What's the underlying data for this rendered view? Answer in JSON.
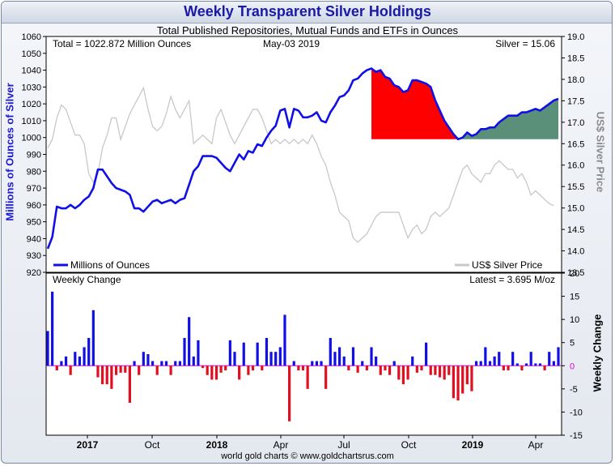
{
  "title": "Weekly Transparent Silver Holdings",
  "subtitle": "Total Published Repositories, Mutual Funds and ETFs in Ounces",
  "footer": "world gold charts © www.goldchartsrus.com",
  "upper": {
    "total_label": "Total = 1022.872 Million Ounces",
    "date_label": "May-03  2019",
    "silver_label": "Silver = 15.06",
    "ylabel_left": "Millions of Ounces of Silver",
    "ylabel_right": "US$ Silver Price",
    "legend_holdings": "Millions of Ounces",
    "legend_price": "US$ Silver Price",
    "left_ticks": [
      920,
      930,
      940,
      950,
      960,
      970,
      980,
      990,
      1000,
      1010,
      1020,
      1030,
      1040,
      1050,
      1060
    ],
    "right_ticks": [
      "13.5",
      "14.0",
      "14.5",
      "15.0",
      "15.5",
      "16.0",
      "16.5",
      "17.0",
      "17.5",
      "18.0",
      "18.5",
      "19.0"
    ]
  },
  "lower": {
    "label": "Weekly Change",
    "latest_label": "Latest = 3.695 M/oz",
    "ylabel": "Weekly Change",
    "ticks": [
      20,
      15,
      10,
      5,
      0,
      -5,
      -10,
      -15
    ]
  },
  "x_labels": [
    {
      "text": "2017",
      "bold": true
    },
    {
      "text": "Oct",
      "bold": false
    },
    {
      "text": "2018",
      "bold": true
    },
    {
      "text": "Apr",
      "bold": false
    },
    {
      "text": "Jul",
      "bold": false
    },
    {
      "text": "Oct",
      "bold": false
    },
    {
      "text": "2019",
      "bold": true
    },
    {
      "text": "Apr",
      "bold": false
    }
  ],
  "colors": {
    "holdings": "#1010e6",
    "price": "#c8c8c8",
    "pos": "#1010e6",
    "neg": "#e01020",
    "fall_fill": "#ff0000",
    "rise_fill": "#5a8f7a",
    "zero": "#e000e0"
  },
  "chart_data": [
    {
      "type": "line",
      "title": "Weekly Transparent Silver Holdings",
      "ylabel": "Millions of Ounces of Silver",
      "y2label": "US$ Silver Price",
      "ylim": [
        920,
        1060
      ],
      "y2lim": [
        13.5,
        19.0
      ],
      "x_range_weeks": 122,
      "series": [
        {
          "name": "Millions of Ounces",
          "axis": "left",
          "values": [
            934,
            941,
            959,
            958,
            958,
            960,
            958,
            960,
            963,
            965,
            970,
            981,
            981,
            977,
            973,
            970,
            969,
            968,
            966,
            958,
            958,
            956,
            959,
            962,
            963,
            961,
            962,
            963,
            961,
            963,
            964,
            972,
            980,
            983,
            989,
            989,
            989,
            988,
            985,
            982,
            980,
            985,
            990,
            987,
            992,
            991,
            996,
            995,
            1000,
            1004,
            1007,
            1016,
            1017,
            1006,
            1017,
            1016,
            1012,
            1012,
            1013,
            1015,
            1010,
            1009,
            1015,
            1019,
            1024,
            1025,
            1028,
            1034,
            1035,
            1038,
            1040,
            1041,
            1039,
            1040,
            1036,
            1035,
            1031,
            1030,
            1027,
            1028,
            1034,
            1034,
            1033,
            1032,
            1030,
            1022,
            1016,
            1010,
            1006,
            1002,
            999,
            1000,
            1003,
            1001,
            1002,
            1005,
            1005,
            1006,
            1006,
            1009,
            1011,
            1013,
            1013,
            1013,
            1015,
            1015,
            1016,
            1017,
            1016,
            1018,
            1020,
            1022,
            1023
          ]
        },
        {
          "name": "US$ Silver Price",
          "axis": "right",
          "values": [
            16.4,
            16.6,
            17.1,
            17.4,
            17.3,
            17.0,
            16.7,
            16.7,
            16.5,
            15.8,
            15.6,
            15.8,
            16.4,
            16.7,
            17.1,
            17.1,
            16.6,
            16.9,
            17.2,
            17.4,
            17.6,
            17.8,
            17.3,
            16.9,
            16.8,
            16.9,
            17.2,
            17.6,
            17.3,
            17.1,
            17.3,
            17.5,
            16.5,
            16.6,
            16.7,
            16.6,
            16.5,
            17.1,
            17.3,
            17.0,
            16.7,
            16.5,
            16.7,
            16.9,
            17.1,
            17.3,
            17.3,
            17.1,
            16.8,
            16.5,
            16.6,
            16.5,
            16.6,
            16.5,
            16.6,
            16.5,
            16.6,
            16.5,
            16.7,
            16.5,
            16.2,
            16.0,
            15.6,
            15.3,
            14.9,
            14.8,
            14.7,
            14.3,
            14.2,
            14.3,
            14.4,
            14.6,
            14.8,
            14.9,
            14.9,
            14.9,
            14.9,
            14.9,
            14.6,
            14.3,
            14.5,
            14.6,
            14.4,
            14.5,
            14.8,
            14.9,
            14.8,
            14.9,
            15.0,
            15.3,
            15.6,
            15.9,
            16.0,
            15.8,
            15.7,
            15.6,
            15.8,
            15.8,
            16.0,
            16.1,
            16.0,
            15.9,
            15.9,
            15.7,
            15.8,
            15.6,
            15.3,
            15.4,
            15.3,
            15.2,
            15.1,
            15.06
          ]
        }
      ]
    },
    {
      "type": "bar",
      "title": "Weekly Change",
      "ylabel": "Weekly Change",
      "ylim": [
        -15,
        20
      ],
      "series": [
        {
          "name": "Weekly Change",
          "values": [
            7.5,
            16,
            -1,
            1,
            2,
            -2,
            3,
            2,
            4,
            6,
            12,
            -2.5,
            -4,
            -4,
            -5,
            -2,
            -1.5,
            -1.5,
            -8,
            1,
            -2,
            3,
            2.5,
            1,
            -2,
            1,
            1,
            -2,
            1,
            1,
            6,
            10.5,
            2,
            5.5,
            -0.5,
            -2,
            -3,
            -3,
            -1.5,
            -1,
            5.5,
            3,
            -3,
            5,
            -2,
            -1,
            5,
            -1,
            6,
            3,
            3,
            4,
            11,
            -12,
            1,
            -1,
            -1,
            -5,
            1,
            1,
            1,
            -5,
            6,
            3,
            4,
            2,
            -1,
            4,
            -1.5,
            1,
            -1,
            4,
            2,
            -2,
            -1,
            -2,
            1,
            -3,
            -4,
            -3,
            2,
            -1.5,
            -1,
            5,
            -2,
            -2,
            -2.5,
            -3,
            -2,
            -7,
            -7.5,
            -6,
            -4,
            -5.5,
            1,
            1,
            4,
            1,
            2,
            3,
            -1,
            -1,
            3,
            0.5,
            -1,
            0.5,
            3,
            0.5,
            0.5,
            -1,
            3,
            1,
            4
          ]
        }
      ]
    }
  ]
}
